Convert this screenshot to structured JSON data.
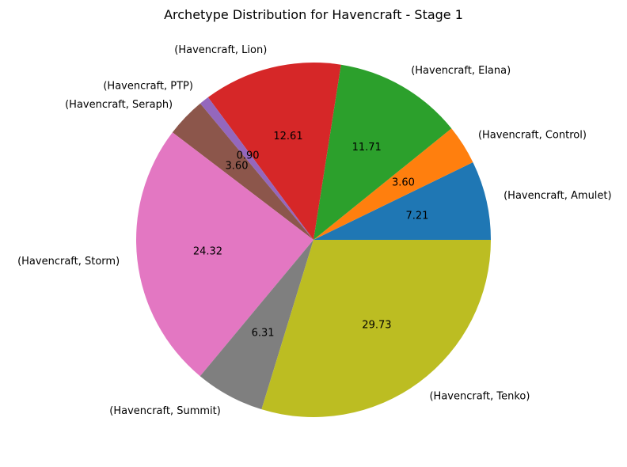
{
  "chart_data": {
    "type": "pie",
    "title": "Archetype Distribution for Havencraft - Stage 1",
    "start_angle_deg": 0,
    "direction": "counterclockwise",
    "slices": [
      {
        "label": "(Havencraft, Amulet)",
        "value": 7.21,
        "pct_text": "7.21",
        "color": "#1f77b4"
      },
      {
        "label": "(Havencraft, Control)",
        "value": 3.6,
        "pct_text": "3.60",
        "color": "#ff7f0e"
      },
      {
        "label": "(Havencraft, Elana)",
        "value": 11.71,
        "pct_text": "11.71",
        "color": "#2ca02c"
      },
      {
        "label": "(Havencraft, Lion)",
        "value": 12.61,
        "pct_text": "12.61",
        "color": "#d62728"
      },
      {
        "label": "(Havencraft, PTP)",
        "value": 0.9,
        "pct_text": "0.90",
        "color": "#9467bd"
      },
      {
        "label": "(Havencraft, Seraph)",
        "value": 3.6,
        "pct_text": "3.60",
        "color": "#8c564b"
      },
      {
        "label": "(Havencraft, Storm)",
        "value": 24.32,
        "pct_text": "24.32",
        "color": "#e377c2"
      },
      {
        "label": "(Havencraft, Summit)",
        "value": 6.31,
        "pct_text": "6.31",
        "color": "#7f7f7f"
      },
      {
        "label": "(Havencraft, Tenko)",
        "value": 29.73,
        "pct_text": "29.73",
        "color": "#bcbd22"
      }
    ]
  }
}
